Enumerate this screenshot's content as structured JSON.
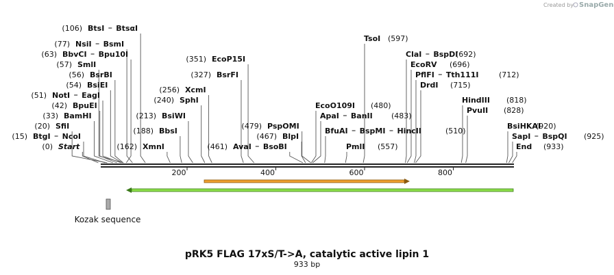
{
  "credit": {
    "prefix": "Created by",
    "brand": "SnapGene"
  },
  "map": {
    "title": "pRK5 FLAG 17xS/T->A, catalytic active lipin 1",
    "length": "933 bp",
    "ruler": [
      "200",
      "400",
      "600",
      "800"
    ],
    "sites": [
      {
        "pos": "(106)",
        "names": [
          "BtsI",
          "BtsαI"
        ]
      },
      {
        "pos": "(77)",
        "names": [
          "NsiI",
          "BsmI"
        ]
      },
      {
        "pos": "(63)",
        "names": [
          "BbvCI",
          "Bpu10I"
        ]
      },
      {
        "pos": "(57)",
        "names": [
          "SmlI"
        ]
      },
      {
        "pos": "(56)",
        "names": [
          "BsrBI"
        ]
      },
      {
        "pos": "(54)",
        "names": [
          "BsiEI"
        ]
      },
      {
        "pos": "(51)",
        "names": [
          "NotI",
          "EagI"
        ]
      },
      {
        "pos": "(42)",
        "names": [
          "BpuEI"
        ]
      },
      {
        "pos": "(33)",
        "names": [
          "BamHI"
        ]
      },
      {
        "pos": "(20)",
        "names": [
          "SfiI"
        ]
      },
      {
        "pos": "(15)",
        "names": [
          "BtgI",
          "NcoI"
        ]
      },
      {
        "pos": "(0)",
        "names": [
          "Start"
        ]
      },
      {
        "pos": "(162)",
        "names": [
          "XmnI"
        ]
      },
      {
        "pos": "(188)",
        "names": [
          "BbsI"
        ]
      },
      {
        "pos": "(213)",
        "names": [
          "BsiWI"
        ]
      },
      {
        "pos": "(240)",
        "names": [
          "SphI"
        ]
      },
      {
        "pos": "(256)",
        "names": [
          "XcmI"
        ]
      },
      {
        "pos": "(327)",
        "names": [
          "BsrFI"
        ]
      },
      {
        "pos": "(351)",
        "names": [
          "EcoP15I"
        ]
      },
      {
        "pos": "(479)",
        "names": [
          "PspOMI"
        ]
      },
      {
        "pos": "(467)",
        "names": [
          "BlpI"
        ]
      },
      {
        "pos": "(461)",
        "names": [
          "AvaI",
          "BsoBI"
        ]
      },
      {
        "pos": "(480)",
        "names": [
          "EcoO109I"
        ]
      },
      {
        "pos": "(483)",
        "names": [
          "ApaI",
          "BanII"
        ]
      },
      {
        "pos": "(510)",
        "names": [
          "BfuAI",
          "BspMI",
          "HincII"
        ]
      },
      {
        "pos": "(557)",
        "names": [
          "PmlI"
        ]
      },
      {
        "pos": "(597)",
        "names": [
          "TsoI"
        ]
      },
      {
        "pos": "(692)",
        "names": [
          "ClaI",
          "BspDI"
        ]
      },
      {
        "pos": "(696)",
        "names": [
          "EcoRV"
        ]
      },
      {
        "pos": "(712)",
        "names": [
          "PflFI",
          "Tth111I"
        ]
      },
      {
        "pos": "(715)",
        "names": [
          "DrdI"
        ]
      },
      {
        "pos": "(818)",
        "names": [
          "HindIII"
        ]
      },
      {
        "pos": "(828)",
        "names": [
          "PvuII"
        ]
      },
      {
        "pos": "(920)",
        "names": [
          "BsiHKAI"
        ]
      },
      {
        "pos": "(925)",
        "names": [
          "SapI",
          "BspQI"
        ]
      },
      {
        "pos": "(933)",
        "names": [
          "End"
        ]
      }
    ],
    "features": [
      {
        "label": "Kozak sequence"
      }
    ]
  }
}
